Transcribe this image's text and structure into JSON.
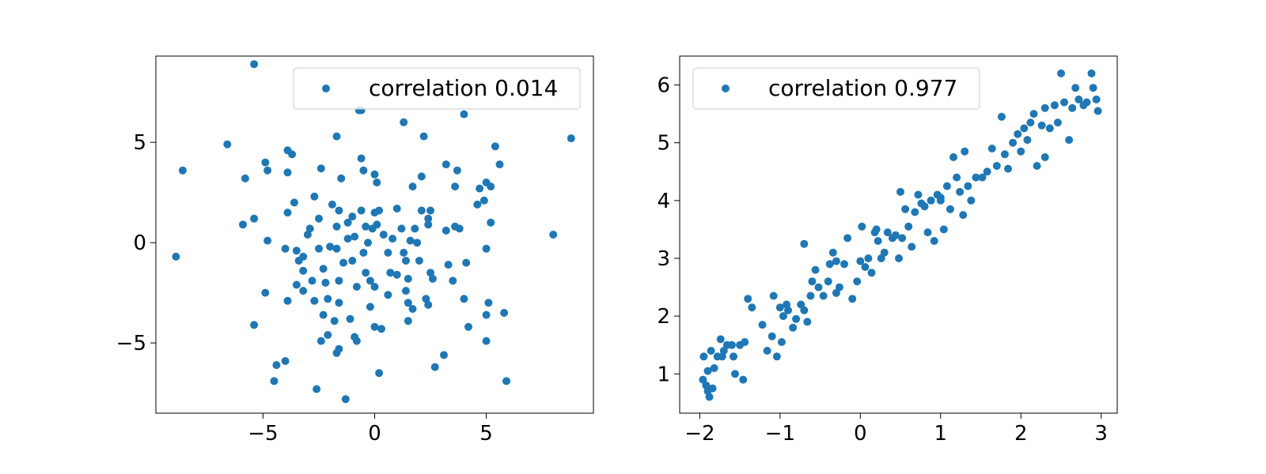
{
  "chart_data": [
    {
      "type": "scatter",
      "title": "",
      "xlabel": "",
      "ylabel": "",
      "xlim": [
        -9.8,
        9.8
      ],
      "ylim": [
        -8.5,
        9.3
      ],
      "xticks": [
        -5,
        0,
        5
      ],
      "xtick_labels": [
        "−5",
        "0",
        "5"
      ],
      "yticks": [
        -5,
        0,
        5
      ],
      "ytick_labels": [
        "−5",
        "0",
        "5"
      ],
      "grid": false,
      "legend_position": "top-right",
      "color": "#1f77b4",
      "series": [
        {
          "name": "correlation 0.014",
          "points": [
            [
              -5.4,
              8.9
            ],
            [
              -8.9,
              -0.7
            ],
            [
              -8.6,
              3.6
            ],
            [
              -6.6,
              4.9
            ],
            [
              -5.8,
              3.2
            ],
            [
              -5.9,
              0.9
            ],
            [
              -5.4,
              1.2
            ],
            [
              -5.4,
              -4.1
            ],
            [
              -4.9,
              4.0
            ],
            [
              -4.8,
              3.6
            ],
            [
              -4.8,
              0.1
            ],
            [
              -4.9,
              -2.5
            ],
            [
              -4.4,
              -6.1
            ],
            [
              -4.5,
              -6.9
            ],
            [
              -4.0,
              -5.9
            ],
            [
              -3.9,
              4.6
            ],
            [
              -3.7,
              4.4
            ],
            [
              -3.9,
              3.5
            ],
            [
              -3.9,
              1.5
            ],
            [
              -3.6,
              2.0
            ],
            [
              -3.5,
              -0.4
            ],
            [
              -4.0,
              -0.3
            ],
            [
              -3.9,
              -2.9
            ],
            [
              -3.5,
              -2.1
            ],
            [
              -3.4,
              -0.9
            ],
            [
              -3.2,
              -0.7
            ],
            [
              -2.9,
              0.7
            ],
            [
              -3.2,
              -1.4
            ],
            [
              -3.2,
              -2.4
            ],
            [
              -2.7,
              -2.9
            ],
            [
              -2.7,
              2.3
            ],
            [
              -2.4,
              3.7
            ],
            [
              -2.5,
              1.2
            ],
            [
              -2.5,
              -0.3
            ],
            [
              -2.3,
              -1.3
            ],
            [
              -2.2,
              -2.0
            ],
            [
              -2.1,
              -2.8
            ],
            [
              -2.3,
              -3.6
            ],
            [
              -2.4,
              -4.9
            ],
            [
              -2.1,
              -4.6
            ],
            [
              -2.6,
              -7.3
            ],
            [
              -1.9,
              1.9
            ],
            [
              -1.7,
              0.8
            ],
            [
              -1.6,
              1.6
            ],
            [
              -1.7,
              -0.3
            ],
            [
              -1.6,
              -1.9
            ],
            [
              -1.8,
              -3.9
            ],
            [
              -1.6,
              -3.0
            ],
            [
              -1.6,
              -5.3
            ],
            [
              -1.7,
              -5.5
            ],
            [
              -1.3,
              -7.8
            ],
            [
              -1.5,
              3.2
            ],
            [
              -1.7,
              5.3
            ],
            [
              -1.2,
              1.0
            ],
            [
              -1.0,
              1.3
            ],
            [
              -0.9,
              0.3
            ],
            [
              -1.0,
              -0.9
            ],
            [
              -1.1,
              -3.8
            ],
            [
              -0.9,
              -4.7
            ],
            [
              -0.8,
              -4.9
            ],
            [
              -0.7,
              6.6
            ],
            [
              -0.6,
              6.6
            ],
            [
              -0.6,
              4.2
            ],
            [
              -0.5,
              3.6
            ],
            [
              -0.6,
              1.6
            ],
            [
              -0.4,
              0.8
            ],
            [
              -0.3,
              0.0
            ],
            [
              -0.5,
              -0.5
            ],
            [
              -0.4,
              -1.5
            ],
            [
              -0.2,
              -1.9
            ],
            [
              0.0,
              -2.2
            ],
            [
              -0.2,
              -3.2
            ],
            [
              0.0,
              -4.2
            ],
            [
              0.3,
              -4.3
            ],
            [
              0.2,
              -6.5
            ],
            [
              0.0,
              3.4
            ],
            [
              0.1,
              3.0
            ],
            [
              0.0,
              1.5
            ],
            [
              0.2,
              1.6
            ],
            [
              0.1,
              0.9
            ],
            [
              0.4,
              0.4
            ],
            [
              0.6,
              -0.5
            ],
            [
              0.7,
              -1.5
            ],
            [
              1.0,
              -1.6
            ],
            [
              1.0,
              1.7
            ],
            [
              1.2,
              0.7
            ],
            [
              1.3,
              -0.5
            ],
            [
              1.4,
              -0.9
            ],
            [
              1.5,
              -1.8
            ],
            [
              1.4,
              -2.4
            ],
            [
              1.5,
              -3.0
            ],
            [
              1.5,
              -3.9
            ],
            [
              1.7,
              -3.3
            ],
            [
              1.3,
              6.0
            ],
            [
              1.7,
              2.8
            ],
            [
              1.8,
              0.7
            ],
            [
              1.9,
              0.0
            ],
            [
              2.0,
              -0.9
            ],
            [
              2.1,
              1.6
            ],
            [
              2.2,
              5.3
            ],
            [
              2.1,
              3.3
            ],
            [
              2.4,
              1.2
            ],
            [
              2.5,
              1.6
            ],
            [
              2.4,
              0.9
            ],
            [
              2.5,
              -1.5
            ],
            [
              2.6,
              -1.8
            ],
            [
              2.3,
              -2.8
            ],
            [
              2.4,
              -3.1
            ],
            [
              2.7,
              -6.2
            ],
            [
              3.1,
              -5.6
            ],
            [
              3.2,
              0.6
            ],
            [
              3.3,
              -1.1
            ],
            [
              3.5,
              -1.9
            ],
            [
              3.6,
              2.8
            ],
            [
              3.6,
              0.8
            ],
            [
              3.8,
              0.7
            ],
            [
              3.7,
              3.6
            ],
            [
              4.1,
              -1.0
            ],
            [
              4.0,
              -2.8
            ],
            [
              4.2,
              -4.2
            ],
            [
              4.0,
              6.4
            ],
            [
              4.7,
              2.7
            ],
            [
              4.6,
              1.9
            ],
            [
              4.9,
              2.1
            ],
            [
              5.0,
              3.0
            ],
            [
              5.2,
              2.8
            ],
            [
              5.0,
              -0.3
            ],
            [
              5.1,
              -3.0
            ],
            [
              5.0,
              -3.6
            ],
            [
              5.0,
              -4.9
            ],
            [
              5.2,
              1.0
            ],
            [
              5.4,
              4.8
            ],
            [
              5.6,
              3.9
            ],
            [
              5.8,
              -3.5
            ],
            [
              5.9,
              -6.9
            ],
            [
              8.0,
              0.4
            ],
            [
              8.8,
              5.2
            ],
            [
              -2.0,
              -0.2
            ],
            [
              -1.2,
              0.2
            ],
            [
              -0.1,
              0.7
            ],
            [
              0.8,
              0.2
            ],
            [
              1.6,
              0.1
            ],
            [
              -0.8,
              -2.2
            ],
            [
              0.6,
              -2.6
            ],
            [
              -2.8,
              -1.9
            ],
            [
              3.2,
              3.9
            ],
            [
              -3.0,
              0.4
            ],
            [
              -1.4,
              -1.0
            ]
          ]
        }
      ]
    },
    {
      "type": "scatter",
      "title": "",
      "xlabel": "",
      "ylabel": "",
      "xlim": [
        -2.25,
        3.2
      ],
      "ylim": [
        0.32,
        6.5
      ],
      "xticks": [
        -2,
        -1,
        0,
        1,
        2,
        3
      ],
      "xtick_labels": [
        "−2",
        "−1",
        "0",
        "1",
        "2",
        "3"
      ],
      "yticks": [
        1,
        2,
        3,
        4,
        5,
        6
      ],
      "ytick_labels": [
        "1",
        "2",
        "3",
        "4",
        "5",
        "6"
      ],
      "grid": false,
      "legend_position": "top-left",
      "color": "#1f77b4",
      "series": [
        {
          "name": "correlation 0.977",
          "points": [
            [
              -1.96,
              0.9
            ],
            [
              -1.92,
              0.8
            ],
            [
              -1.88,
              0.6
            ],
            [
              -1.9,
              0.7
            ],
            [
              -1.84,
              0.75
            ],
            [
              -1.95,
              1.3
            ],
            [
              -1.86,
              1.4
            ],
            [
              -1.82,
              1.1
            ],
            [
              -1.78,
              1.3
            ],
            [
              -1.72,
              1.3
            ],
            [
              -1.7,
              1.4
            ],
            [
              -1.74,
              1.6
            ],
            [
              -1.66,
              1.5
            ],
            [
              -1.6,
              1.5
            ],
            [
              -1.58,
              1.3
            ],
            [
              -1.56,
              1.0
            ],
            [
              -1.5,
              1.5
            ],
            [
              -1.46,
              0.9
            ],
            [
              -1.44,
              1.55
            ],
            [
              -1.4,
              2.3
            ],
            [
              -1.35,
              2.15
            ],
            [
              -1.22,
              1.85
            ],
            [
              -1.16,
              1.4
            ],
            [
              -1.1,
              1.65
            ],
            [
              -1.08,
              2.35
            ],
            [
              -1.04,
              1.3
            ],
            [
              -0.98,
              1.55
            ],
            [
              -0.96,
              2.0
            ],
            [
              -0.92,
              2.2
            ],
            [
              -0.9,
              2.1
            ],
            [
              -0.84,
              1.8
            ],
            [
              -0.8,
              1.95
            ],
            [
              -0.74,
              2.2
            ],
            [
              -0.7,
              2.1
            ],
            [
              -0.66,
              1.9
            ],
            [
              -0.62,
              2.35
            ],
            [
              -0.6,
              2.6
            ],
            [
              -0.56,
              2.8
            ],
            [
              -0.52,
              2.5
            ],
            [
              -0.46,
              2.35
            ],
            [
              -0.4,
              2.6
            ],
            [
              -0.38,
              2.9
            ],
            [
              -0.34,
              3.1
            ],
            [
              -0.3,
              2.95
            ],
            [
              -0.26,
              2.5
            ],
            [
              -0.2,
              2.9
            ],
            [
              -0.16,
              3.35
            ],
            [
              -0.1,
              2.3
            ],
            [
              -0.04,
              2.6
            ],
            [
              0.0,
              2.95
            ],
            [
              0.02,
              3.55
            ],
            [
              0.06,
              2.85
            ],
            [
              0.1,
              3.0
            ],
            [
              0.14,
              2.75
            ],
            [
              0.18,
              3.45
            ],
            [
              0.22,
              3.3
            ],
            [
              0.26,
              3.0
            ],
            [
              0.3,
              3.1
            ],
            [
              0.34,
              3.45
            ],
            [
              0.4,
              3.35
            ],
            [
              0.44,
              3.4
            ],
            [
              0.48,
              3.0
            ],
            [
              0.52,
              3.35
            ],
            [
              0.56,
              3.85
            ],
            [
              0.6,
              3.55
            ],
            [
              0.64,
              3.2
            ],
            [
              0.68,
              3.8
            ],
            [
              0.72,
              4.1
            ],
            [
              0.76,
              3.95
            ],
            [
              0.8,
              3.9
            ],
            [
              0.84,
              3.45
            ],
            [
              0.88,
              4.0
            ],
            [
              0.92,
              3.3
            ],
            [
              0.96,
              4.1
            ],
            [
              1.0,
              4.0
            ],
            [
              1.04,
              3.5
            ],
            [
              1.08,
              4.25
            ],
            [
              1.12,
              3.85
            ],
            [
              1.16,
              4.75
            ],
            [
              1.2,
              4.4
            ],
            [
              1.24,
              4.15
            ],
            [
              1.28,
              3.75
            ],
            [
              1.3,
              4.85
            ],
            [
              1.34,
              4.25
            ],
            [
              1.38,
              4.0
            ],
            [
              1.44,
              4.4
            ],
            [
              1.52,
              4.4
            ],
            [
              1.58,
              4.5
            ],
            [
              1.64,
              4.9
            ],
            [
              1.7,
              4.6
            ],
            [
              1.76,
              5.45
            ],
            [
              1.8,
              4.8
            ],
            [
              1.84,
              4.55
            ],
            [
              1.9,
              5.0
            ],
            [
              1.96,
              5.15
            ],
            [
              2.0,
              4.85
            ],
            [
              2.04,
              5.25
            ],
            [
              2.08,
              5.05
            ],
            [
              2.12,
              5.35
            ],
            [
              2.16,
              5.5
            ],
            [
              2.2,
              4.6
            ],
            [
              2.26,
              5.3
            ],
            [
              2.3,
              5.6
            ],
            [
              2.36,
              5.25
            ],
            [
              2.42,
              5.65
            ],
            [
              2.46,
              5.35
            ],
            [
              2.5,
              6.2
            ],
            [
              2.54,
              5.7
            ],
            [
              2.6,
              5.05
            ],
            [
              2.64,
              5.6
            ],
            [
              2.68,
              5.95
            ],
            [
              2.72,
              5.75
            ],
            [
              2.78,
              5.65
            ],
            [
              2.82,
              5.7
            ],
            [
              2.88,
              6.2
            ],
            [
              2.9,
              5.95
            ],
            [
              2.94,
              5.75
            ],
            [
              2.96,
              5.55
            ],
            [
              -0.7,
              3.25
            ],
            [
              0.5,
              4.15
            ],
            [
              -1.9,
              1.05
            ],
            [
              -0.3,
              2.4
            ],
            [
              1.0,
              4.05
            ],
            [
              2.3,
              4.75
            ],
            [
              0.2,
              3.5
            ],
            [
              -1.0,
              2.15
            ]
          ]
        }
      ]
    }
  ]
}
